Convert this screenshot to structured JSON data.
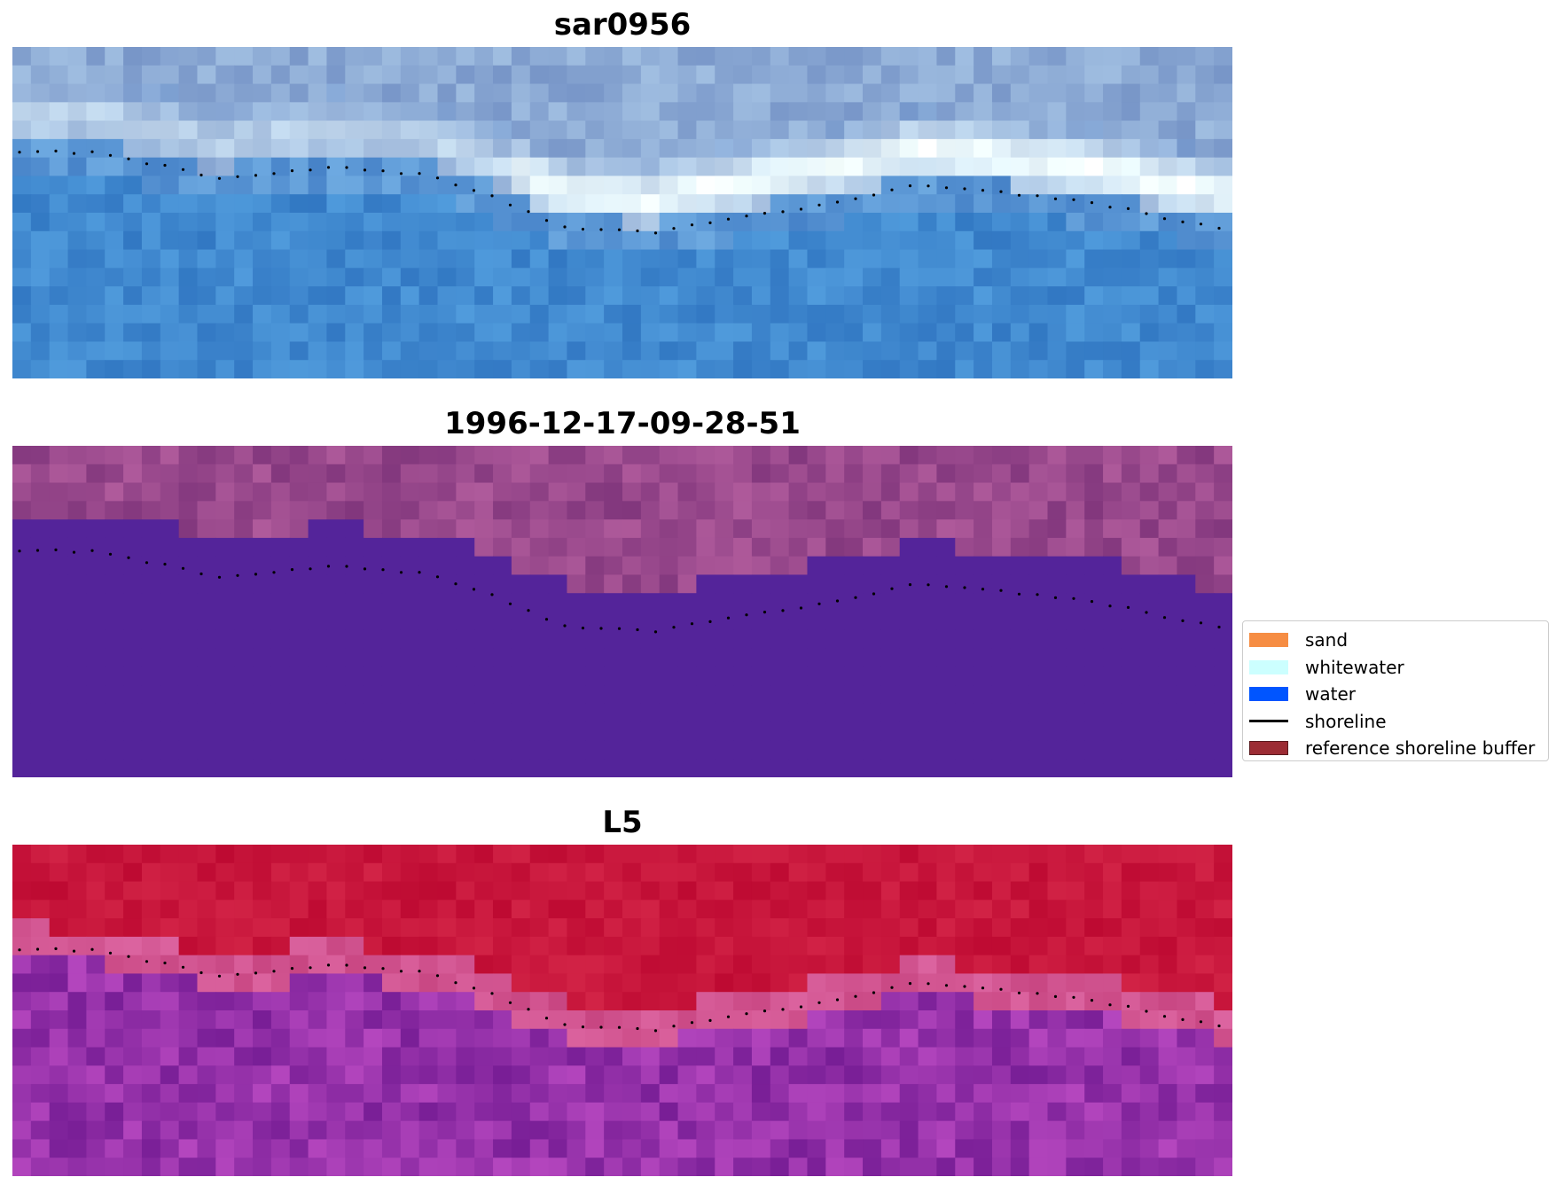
{
  "panels": [
    {
      "title": "sar0956",
      "palette": "rgb-blue"
    },
    {
      "title": "1996-12-17-09-28-51",
      "palette": "classified-purple"
    },
    {
      "title": "L5",
      "palette": "ndwi-red-purple"
    }
  ],
  "legend": {
    "items": [
      {
        "label": "sand",
        "kind": "patch",
        "color": "#f68d43"
      },
      {
        "label": "whitewater",
        "kind": "patch",
        "color": "#ccffff"
      },
      {
        "label": "water",
        "kind": "patch",
        "color": "#0055ff"
      },
      {
        "label": "shoreline",
        "kind": "line",
        "color": "#000000"
      },
      {
        "label": "reference shoreline buffer",
        "kind": "patch",
        "color": "#9c2c34"
      }
    ]
  },
  "colors": {
    "class_water_fill": "#54249a",
    "class_land_base": "#8e4c8c",
    "shoreline_dots": "#000000"
  }
}
